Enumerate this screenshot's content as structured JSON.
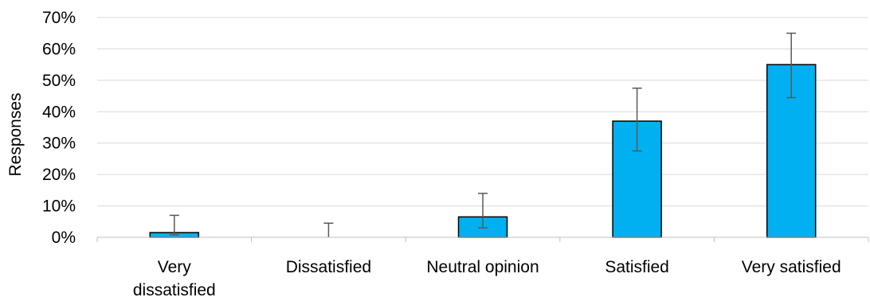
{
  "chart_data": {
    "type": "bar",
    "title": "",
    "xlabel": "",
    "ylabel": "Responses",
    "categories": [
      [
        "Very",
        "dissatisfied"
      ],
      [
        "Dissatisfied"
      ],
      [
        "Neutral opinion"
      ],
      [
        "Satisfied"
      ],
      [
        "Very satisfied"
      ]
    ],
    "values": [
      0.015,
      0.0,
      0.065,
      0.37,
      0.55
    ],
    "error_low": [
      0.008,
      0.0,
      0.03,
      0.275,
      0.445
    ],
    "error_high": [
      0.07,
      0.045,
      0.14,
      0.475,
      0.65
    ],
    "ylim": [
      0,
      0.7
    ],
    "yticks": [
      0,
      0.1,
      0.2,
      0.3,
      0.4,
      0.5,
      0.6,
      0.7
    ],
    "ytick_labels": [
      "0%",
      "10%",
      "20%",
      "30%",
      "40%",
      "50%",
      "60%",
      "70%"
    ],
    "grid": true,
    "bar_color": "#00b0f0",
    "error_color": "#595959"
  }
}
